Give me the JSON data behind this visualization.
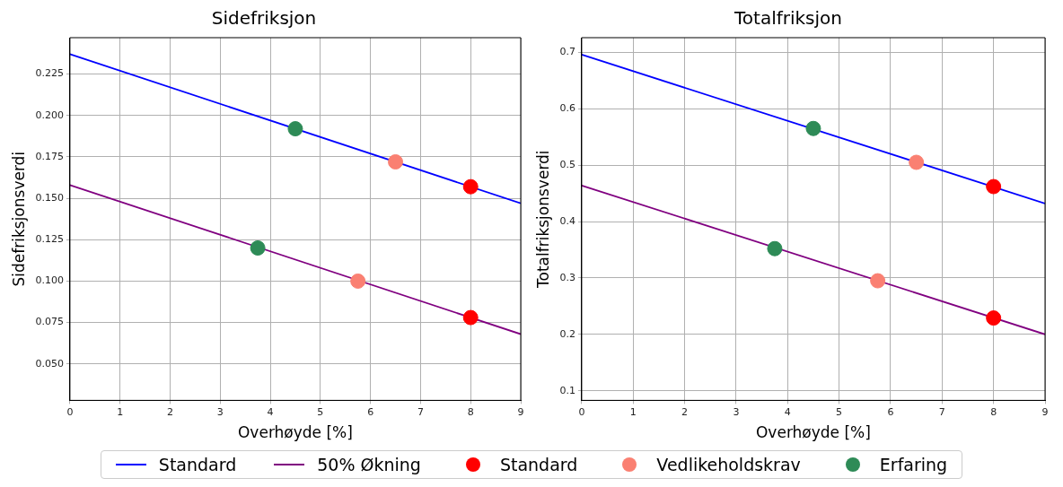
{
  "chart_data": [
    {
      "type": "line",
      "title": "Sidefriksjon",
      "xlabel": "Overhøyde [%]",
      "ylabel": "Sidefriksjonsverdi",
      "xlim": [
        0,
        9
      ],
      "xticks": [
        0,
        1,
        2,
        3,
        4,
        5,
        6,
        7,
        8,
        9
      ],
      "ylim": [
        0.028,
        0.247
      ],
      "yticks": [
        {
          "value": 0.05,
          "label": "0.050"
        },
        {
          "value": 0.075,
          "label": "0.075"
        },
        {
          "value": 0.1,
          "label": "0.100"
        },
        {
          "value": 0.125,
          "label": "0.125"
        },
        {
          "value": 0.15,
          "label": "0.150"
        },
        {
          "value": 0.175,
          "label": "0.175"
        },
        {
          "value": 0.2,
          "label": "0.200"
        },
        {
          "value": 0.225,
          "label": "0.225"
        }
      ],
      "grid": true,
      "legend": "bottom",
      "series": [
        {
          "name": "Standard",
          "color": "#0000ff",
          "x": [
            0,
            9
          ],
          "values": [
            0.237,
            0.147
          ]
        },
        {
          "name": "50% Økning",
          "color": "#800080",
          "x": [
            0,
            9
          ],
          "values": [
            0.158,
            0.068
          ]
        },
        {
          "name": "Standard",
          "type": "scatter",
          "marker": "circle",
          "color": "#ff0000",
          "x": [
            8,
            8
          ],
          "values": [
            0.157,
            0.078
          ]
        },
        {
          "name": "Vedlikeholdskrav",
          "type": "scatter",
          "marker": "circle",
          "color": "#fa8072",
          "x": [
            6.5,
            5.75
          ],
          "values": [
            0.172,
            0.1
          ]
        },
        {
          "name": "Erfaring",
          "type": "scatter",
          "marker": "circle",
          "color": "#2e8b57",
          "x": [
            4.5,
            3.75
          ],
          "values": [
            0.192,
            0.12
          ]
        }
      ]
    },
    {
      "type": "line",
      "title": "Totalfriksjon",
      "xlabel": "Overhøyde [%]",
      "ylabel": "Totalfriksjonsverdi",
      "xlim": [
        0,
        9
      ],
      "xticks": [
        0,
        1,
        2,
        3,
        4,
        5,
        6,
        7,
        8,
        9
      ],
      "ylim": [
        0.083,
        0.726
      ],
      "yticks": [
        0.1,
        0.2,
        0.3,
        0.4,
        0.5,
        0.6,
        0.7
      ],
      "grid": true,
      "series": [
        {
          "color": "#0000ff",
          "x": [
            0,
            9
          ],
          "values": [
            0.696,
            0.432
          ]
        },
        {
          "color": "#800080",
          "x": [
            0,
            9
          ],
          "values": [
            0.464,
            0.2
          ]
        },
        {
          "type": "scatter",
          "marker": "circle",
          "color": "#ff0000",
          "x": [
            8,
            8
          ],
          "values": [
            0.462,
            0.229
          ]
        },
        {
          "type": "scatter",
          "marker": "circle",
          "color": "#fa8072",
          "x": [
            6.5,
            5.75
          ],
          "values": [
            0.505,
            0.295
          ]
        },
        {
          "type": "scatter",
          "marker": "circle",
          "color": "#2e8b57",
          "x": [
            4.5,
            3.75
          ],
          "values": [
            0.565,
            0.352
          ]
        }
      ]
    }
  ]
}
